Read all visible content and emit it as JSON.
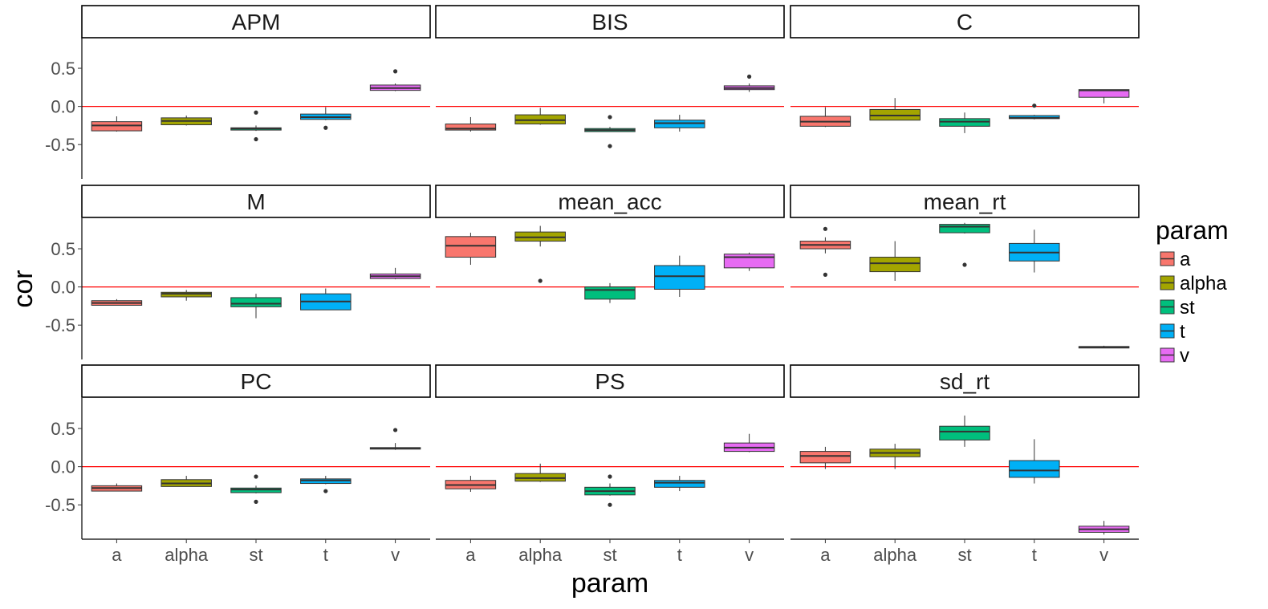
{
  "chart_data": {
    "type": "boxplot",
    "layout": {
      "facet_wrap": "3 columns x 3 rows",
      "free_scales": "none"
    },
    "xlabel": "param",
    "ylabel": "cor",
    "categories": [
      "a",
      "alpha",
      "st",
      "t",
      "v"
    ],
    "ylim": [
      -0.95,
      0.9
    ],
    "yticks": [
      -0.5,
      0.0,
      0.5
    ],
    "ytick_labels": [
      "-0.5",
      "0.0",
      "0.5"
    ],
    "reference_line": {
      "y": 0.0,
      "color": "#ff0000"
    },
    "legend": {
      "title": "param",
      "placement": "right",
      "entries": [
        {
          "label": "a",
          "color": "#F8766D"
        },
        {
          "label": "alpha",
          "color": "#A3A500"
        },
        {
          "label": "st",
          "color": "#00BF7D"
        },
        {
          "label": "t",
          "color": "#00B0F6"
        },
        {
          "label": "v",
          "color": "#E76BF3"
        }
      ]
    },
    "panels": [
      {
        "title": "APM",
        "boxes": [
          {
            "param": "a",
            "min": -0.33,
            "q1": -0.32,
            "median": -0.25,
            "q3": -0.2,
            "max": -0.13,
            "outliers": []
          },
          {
            "param": "alpha",
            "min": -0.25,
            "q1": -0.24,
            "median": -0.19,
            "q3": -0.15,
            "max": -0.12,
            "outliers": []
          },
          {
            "param": "st",
            "min": -0.32,
            "q1": -0.31,
            "median": -0.29,
            "q3": -0.28,
            "max": -0.25,
            "outliers": [
              -0.08,
              -0.43
            ]
          },
          {
            "param": "t",
            "min": -0.18,
            "q1": -0.17,
            "median": -0.14,
            "q3": -0.1,
            "max": -0.01,
            "outliers": [
              -0.28
            ]
          },
          {
            "param": "v",
            "min": 0.2,
            "q1": 0.21,
            "median": 0.24,
            "q3": 0.28,
            "max": 0.3,
            "outliers": [
              0.46
            ]
          }
        ]
      },
      {
        "title": "BIS",
        "boxes": [
          {
            "param": "a",
            "min": -0.33,
            "q1": -0.31,
            "median": -0.29,
            "q3": -0.23,
            "max": -0.14,
            "outliers": []
          },
          {
            "param": "alpha",
            "min": -0.24,
            "q1": -0.23,
            "median": -0.18,
            "q3": -0.11,
            "max": -0.02,
            "outliers": []
          },
          {
            "param": "st",
            "min": -0.33,
            "q1": -0.33,
            "median": -0.31,
            "q3": -0.29,
            "max": -0.27,
            "outliers": [
              -0.14,
              -0.52
            ]
          },
          {
            "param": "t",
            "min": -0.33,
            "q1": -0.28,
            "median": -0.22,
            "q3": -0.18,
            "max": -0.11,
            "outliers": []
          },
          {
            "param": "v",
            "min": 0.19,
            "q1": 0.22,
            "median": 0.24,
            "q3": 0.27,
            "max": 0.3,
            "outliers": [
              0.39
            ]
          }
        ]
      },
      {
        "title": "C",
        "boxes": [
          {
            "param": "a",
            "min": -0.27,
            "q1": -0.26,
            "median": -0.2,
            "q3": -0.13,
            "max": -0.01,
            "outliers": []
          },
          {
            "param": "alpha",
            "min": -0.18,
            "q1": -0.18,
            "median": -0.12,
            "q3": -0.04,
            "max": 0.11,
            "outliers": []
          },
          {
            "param": "st",
            "min": -0.35,
            "q1": -0.26,
            "median": -0.2,
            "q3": -0.16,
            "max": -0.08,
            "outliers": []
          },
          {
            "param": "t",
            "min": -0.17,
            "q1": -0.16,
            "median": -0.15,
            "q3": -0.12,
            "max": -0.11,
            "outliers": [
              0.01
            ]
          },
          {
            "param": "v",
            "min": 0.04,
            "q1": 0.12,
            "median": 0.21,
            "q3": 0.22,
            "max": 0.22,
            "outliers": []
          }
        ]
      },
      {
        "title": "M",
        "boxes": [
          {
            "param": "a",
            "min": -0.24,
            "q1": -0.24,
            "median": -0.21,
            "q3": -0.18,
            "max": -0.16,
            "outliers": []
          },
          {
            "param": "alpha",
            "min": -0.18,
            "q1": -0.13,
            "median": -0.09,
            "q3": -0.07,
            "max": -0.04,
            "outliers": []
          },
          {
            "param": "st",
            "min": -0.41,
            "q1": -0.26,
            "median": -0.22,
            "q3": -0.14,
            "max": -0.09,
            "outliers": []
          },
          {
            "param": "t",
            "min": -0.3,
            "q1": -0.3,
            "median": -0.19,
            "q3": -0.09,
            "max": -0.02,
            "outliers": []
          },
          {
            "param": "v",
            "min": 0.1,
            "q1": 0.11,
            "median": 0.14,
            "q3": 0.17,
            "max": 0.25,
            "outliers": []
          }
        ]
      },
      {
        "title": "mean_acc",
        "boxes": [
          {
            "param": "a",
            "min": 0.29,
            "q1": 0.39,
            "median": 0.54,
            "q3": 0.66,
            "max": 0.71,
            "outliers": []
          },
          {
            "param": "alpha",
            "min": 0.53,
            "q1": 0.6,
            "median": 0.65,
            "q3": 0.72,
            "max": 0.8,
            "outliers": [
              0.08
            ]
          },
          {
            "param": "st",
            "min": -0.21,
            "q1": -0.16,
            "median": -0.04,
            "q3": 0.0,
            "max": 0.05,
            "outliers": []
          },
          {
            "param": "t",
            "min": -0.13,
            "q1": -0.03,
            "median": 0.14,
            "q3": 0.28,
            "max": 0.41,
            "outliers": []
          },
          {
            "param": "v",
            "min": 0.21,
            "q1": 0.25,
            "median": 0.39,
            "q3": 0.43,
            "max": 0.45,
            "outliers": []
          }
        ]
      },
      {
        "title": "mean_rt",
        "boxes": [
          {
            "param": "a",
            "min": 0.44,
            "q1": 0.5,
            "median": 0.55,
            "q3": 0.6,
            "max": 0.65,
            "outliers": [
              0.76,
              0.16
            ]
          },
          {
            "param": "alpha",
            "min": 0.08,
            "q1": 0.2,
            "median": 0.31,
            "q3": 0.39,
            "max": 0.6,
            "outliers": []
          },
          {
            "param": "st",
            "min": 0.7,
            "q1": 0.71,
            "median": 0.79,
            "q3": 0.82,
            "max": 0.84,
            "outliers": [
              0.29
            ]
          },
          {
            "param": "t",
            "min": 0.19,
            "q1": 0.34,
            "median": 0.45,
            "q3": 0.57,
            "max": 0.75,
            "outliers": []
          },
          {
            "param": "v",
            "min": -0.8,
            "q1": -0.8,
            "median": -0.79,
            "q3": -0.78,
            "max": -0.77,
            "outliers": []
          }
        ]
      },
      {
        "title": "PC",
        "boxes": [
          {
            "param": "a",
            "min": -0.32,
            "q1": -0.32,
            "median": -0.28,
            "q3": -0.25,
            "max": -0.22,
            "outliers": []
          },
          {
            "param": "alpha",
            "min": -0.26,
            "q1": -0.26,
            "median": -0.22,
            "q3": -0.17,
            "max": -0.12,
            "outliers": []
          },
          {
            "param": "st",
            "min": -0.35,
            "q1": -0.34,
            "median": -0.3,
            "q3": -0.28,
            "max": -0.25,
            "outliers": [
              -0.13,
              -0.46
            ]
          },
          {
            "param": "t",
            "min": -0.23,
            "q1": -0.22,
            "median": -0.18,
            "q3": -0.16,
            "max": -0.12,
            "outliers": [
              -0.32
            ]
          },
          {
            "param": "v",
            "min": 0.22,
            "q1": 0.23,
            "median": 0.24,
            "q3": 0.25,
            "max": 0.31,
            "outliers": [
              0.48
            ]
          }
        ]
      },
      {
        "title": "PS",
        "boxes": [
          {
            "param": "a",
            "min": -0.33,
            "q1": -0.29,
            "median": -0.24,
            "q3": -0.18,
            "max": -0.12,
            "outliers": []
          },
          {
            "param": "alpha",
            "min": -0.2,
            "q1": -0.19,
            "median": -0.15,
            "q3": -0.09,
            "max": 0.04,
            "outliers": []
          },
          {
            "param": "st",
            "min": -0.38,
            "q1": -0.37,
            "median": -0.32,
            "q3": -0.27,
            "max": -0.22,
            "outliers": [
              -0.13,
              -0.5
            ]
          },
          {
            "param": "t",
            "min": -0.32,
            "q1": -0.27,
            "median": -0.21,
            "q3": -0.18,
            "max": -0.12,
            "outliers": []
          },
          {
            "param": "v",
            "min": 0.19,
            "q1": 0.2,
            "median": 0.25,
            "q3": 0.31,
            "max": 0.43,
            "outliers": []
          }
        ]
      },
      {
        "title": "sd_rt",
        "boxes": [
          {
            "param": "a",
            "min": -0.03,
            "q1": 0.05,
            "median": 0.14,
            "q3": 0.2,
            "max": 0.26,
            "outliers": []
          },
          {
            "param": "alpha",
            "min": -0.03,
            "q1": 0.13,
            "median": 0.18,
            "q3": 0.23,
            "max": 0.3,
            "outliers": []
          },
          {
            "param": "st",
            "min": 0.26,
            "q1": 0.35,
            "median": 0.46,
            "q3": 0.53,
            "max": 0.67,
            "outliers": []
          },
          {
            "param": "t",
            "min": -0.22,
            "q1": -0.14,
            "median": -0.05,
            "q3": 0.08,
            "max": 0.36,
            "outliers": []
          },
          {
            "param": "v",
            "min": -0.89,
            "q1": -0.86,
            "median": -0.82,
            "q3": -0.78,
            "max": -0.71,
            "outliers": []
          }
        ]
      }
    ]
  }
}
